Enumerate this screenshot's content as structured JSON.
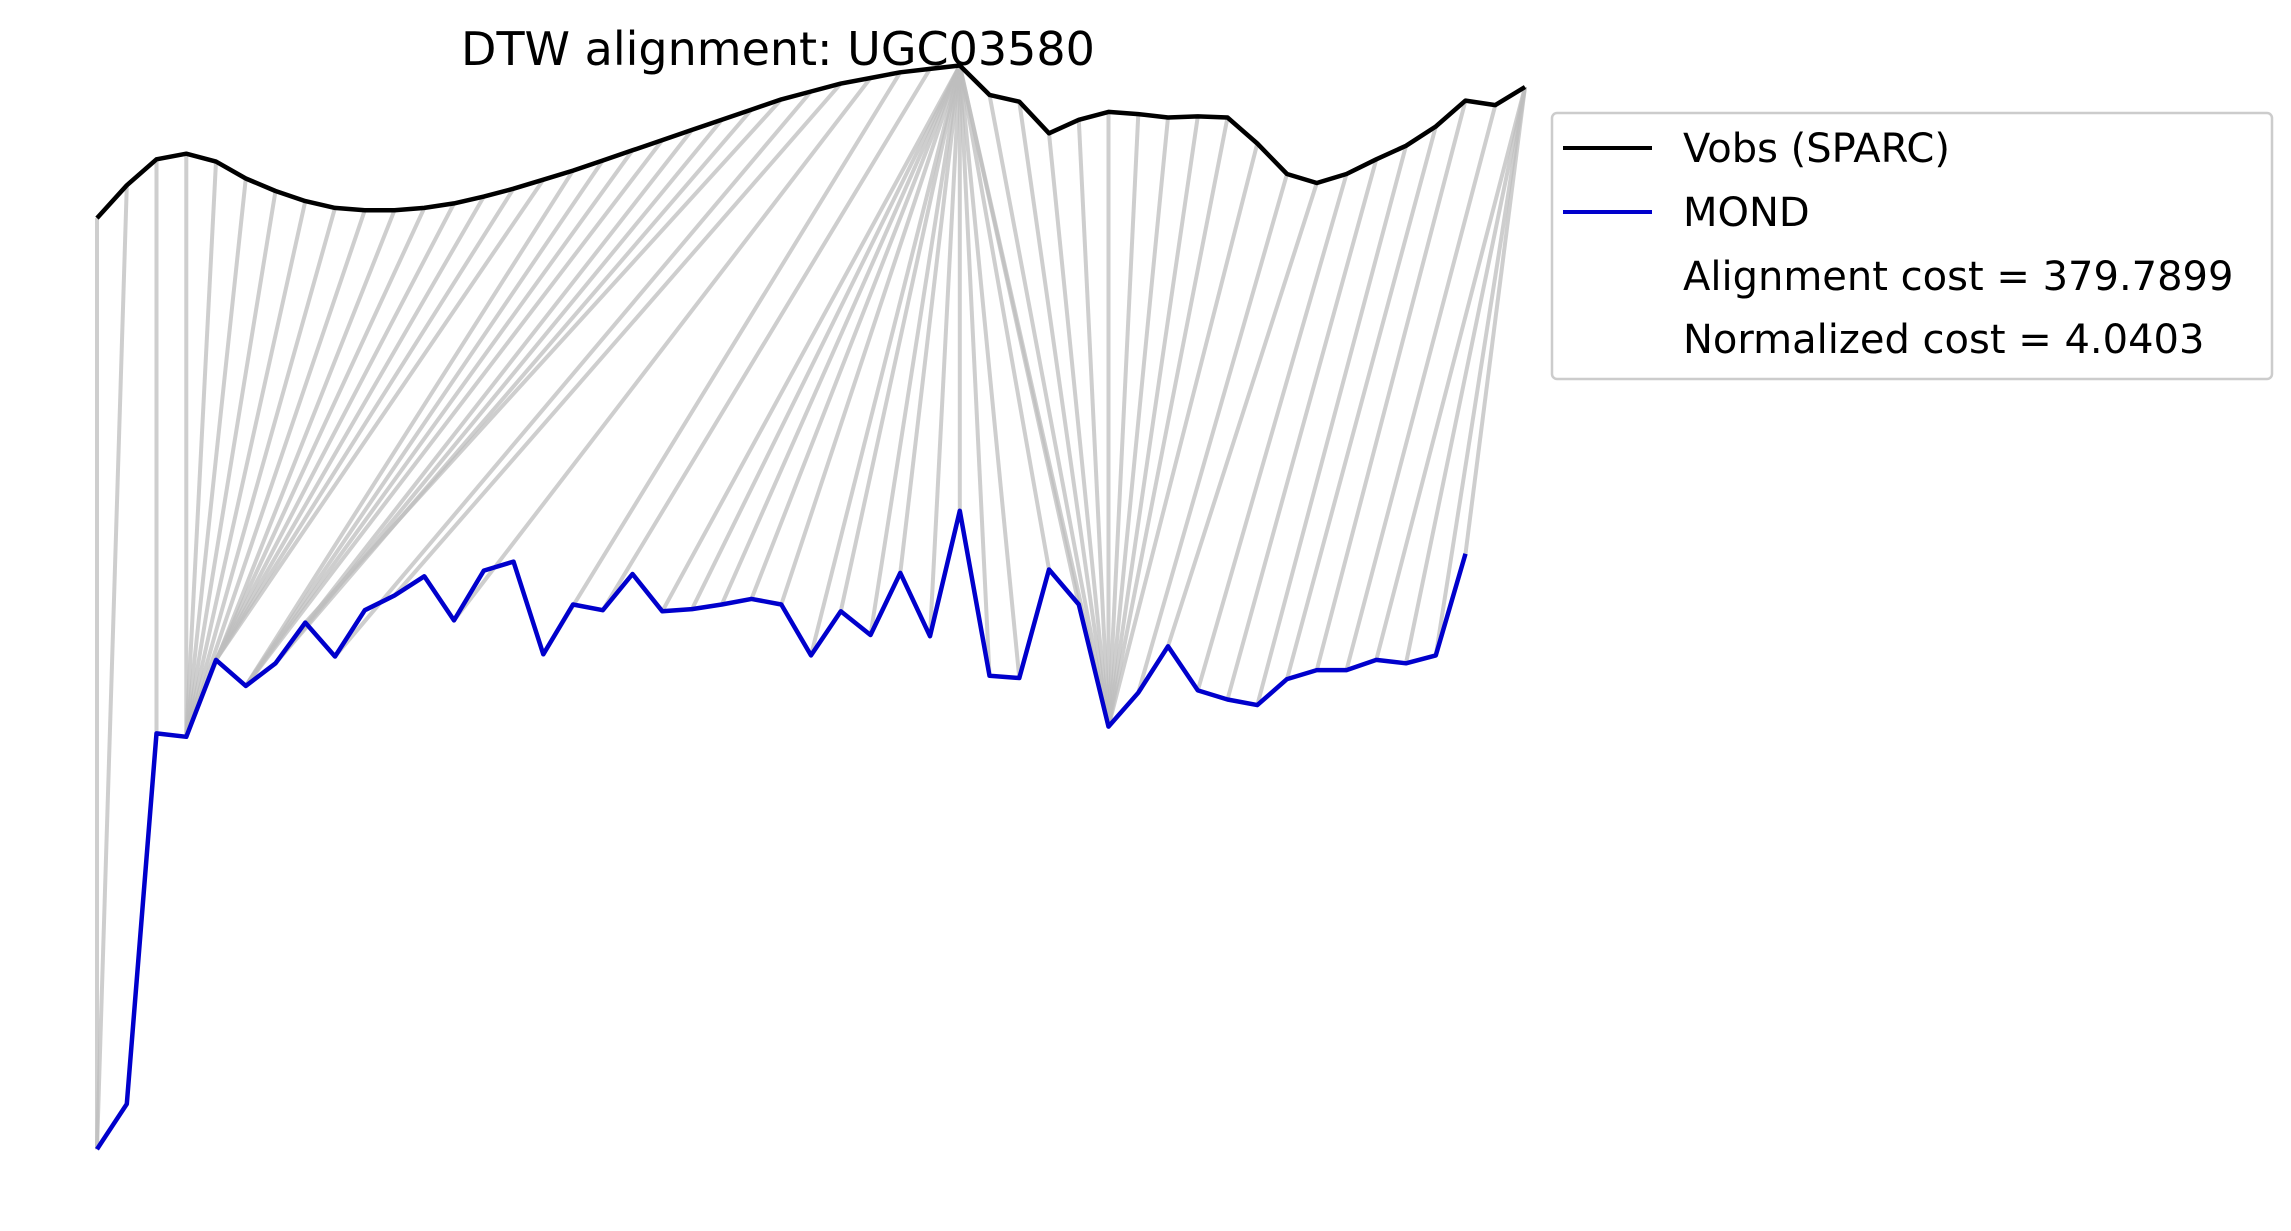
{
  "chart_data": {
    "type": "line",
    "title": "DTW alignment: UGC03580",
    "xlabel": "",
    "ylabel": "",
    "axes_visible": false,
    "grid": false,
    "legend_position": "top-right, outside plot",
    "colors": {
      "vobs": "#000000",
      "mond": "#0000cc",
      "alignment_lines": "#bdbdbd"
    },
    "series": [
      {
        "name": "Vobs (SPARC)",
        "color": "#000000",
        "values": [
          88.4,
          91.3,
          93.6,
          94.1,
          93.4,
          91.9,
          90.8,
          89.9,
          89.3,
          89.1,
          89.1,
          89.3,
          89.7,
          90.3,
          91.0,
          91.8,
          92.6,
          93.5,
          94.4,
          95.3,
          96.2,
          97.1,
          98.0,
          98.9,
          99.6,
          100.3,
          100.8,
          101.3,
          101.6,
          101.9,
          99.3,
          98.7,
          95.9,
          97.1,
          97.8,
          97.6,
          97.3,
          97.4,
          97.3,
          95.0,
          92.3,
          91.5,
          92.3,
          93.6,
          94.8,
          96.5,
          98.8,
          98.4,
          100.0
        ]
      },
      {
        "name": "MOND",
        "color": "#0000cc",
        "values": [
          6.0,
          10.0,
          42.8,
          42.5,
          49.3,
          47.0,
          49.0,
          52.6,
          49.6,
          53.7,
          55.0,
          56.7,
          52.8,
          57.2,
          58.0,
          49.8,
          54.2,
          53.7,
          56.9,
          53.6,
          53.8,
          54.2,
          54.7,
          54.2,
          49.7,
          53.6,
          51.5,
          57.0,
          51.4,
          62.5,
          47.9,
          47.7,
          57.3,
          54.2,
          43.4,
          46.4,
          50.5,
          46.6,
          45.8,
          45.3,
          47.6,
          48.4,
          48.4,
          49.3,
          49.0,
          49.7,
          58.7
        ]
      }
    ],
    "alignment_targets": [
      0,
      0,
      2,
      3,
      3,
      3,
      3,
      3,
      3,
      3,
      3,
      4,
      4,
      4,
      4,
      4,
      5,
      5,
      5,
      5,
      6,
      6,
      6,
      7,
      8,
      10,
      12,
      15,
      17,
      19,
      20,
      21,
      22,
      23,
      24,
      25,
      26,
      27,
      28,
      29,
      30,
      31,
      32,
      33,
      34,
      34,
      34,
      34,
      34,
      34,
      34,
      34,
      34,
      34,
      34,
      35,
      36,
      37,
      38,
      39,
      40,
      41,
      42,
      43,
      44,
      45,
      46
    ],
    "alignment_sources": [
      0,
      1,
      2,
      3,
      4,
      5,
      6,
      7,
      8,
      9,
      10,
      11,
      12,
      13,
      14,
      15,
      16,
      17,
      18,
      19,
      20,
      21,
      22,
      23,
      24,
      25,
      26,
      27,
      28,
      29,
      29,
      29,
      29,
      29,
      29,
      29,
      29,
      29,
      29,
      29,
      29,
      29,
      29,
      29,
      29,
      30,
      31,
      32,
      33,
      34,
      35,
      36,
      37,
      38,
      39,
      40,
      41,
      42,
      43,
      44,
      45,
      46,
      47,
      48,
      48,
      48,
      48
    ],
    "annotations": [
      "Alignment cost = 379.7899",
      "Normalized cost = 4.0403"
    ]
  }
}
